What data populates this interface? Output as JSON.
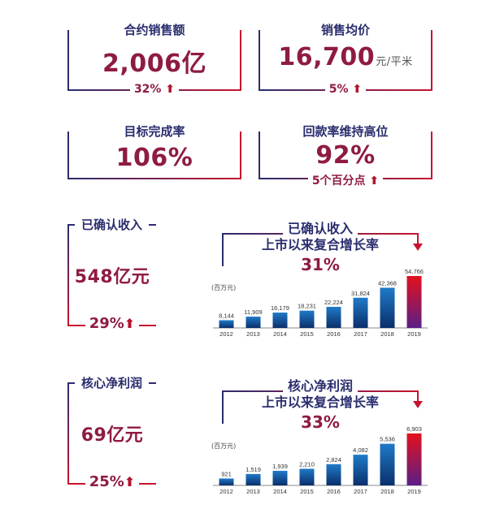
{
  "kpi": {
    "contract_sales": {
      "title": "合约销售额",
      "value": "2,006亿",
      "growth": "32%"
    },
    "avg_price": {
      "title": "销售均价",
      "value": "16,700",
      "unit": "元/平米",
      "growth": "5%"
    },
    "target_completion": {
      "title": "目标完成率",
      "value": "106%"
    },
    "collection_rate": {
      "title": "回款率维持高位",
      "value": "92%",
      "growth": "5个百分点"
    },
    "revenue": {
      "title": "已确认收入",
      "value": "548亿元",
      "growth": "29%"
    },
    "core_profit": {
      "title": "核心净利润",
      "value": "69亿元",
      "growth": "25%"
    }
  },
  "colors": {
    "title": "#2a2d6e",
    "value": "#8e1b43",
    "arrow": "#b3122e",
    "bar_dark": "#0a2f6b",
    "bar_light": "#1f7ac8",
    "bar_highlight": "#e3101e"
  },
  "chart_data": [
    {
      "type": "bar",
      "title_line1": "已确认收入",
      "title_line2": "上市以来复合增长率",
      "cagr": "31%",
      "unit_label": "(百万元)",
      "categories": [
        "2012",
        "2013",
        "2014",
        "2015",
        "2016",
        "2017",
        "2018",
        "2019"
      ],
      "values": [
        8144,
        11909,
        16179,
        18231,
        22224,
        31824,
        42368,
        54766
      ],
      "value_labels": [
        "8,144",
        "11,909",
        "16,179",
        "18,231",
        "22,224",
        "31,824",
        "42,368",
        "54,766"
      ],
      "ylim": [
        0,
        54766
      ],
      "highlight_index": 7
    },
    {
      "type": "bar",
      "title_line1": "核心净利润",
      "title_line2": "上市以来复合增长率",
      "cagr": "33%",
      "unit_label": "(百万元)",
      "categories": [
        "2012",
        "2013",
        "2014",
        "2015",
        "2016",
        "2017",
        "2018",
        "2019"
      ],
      "values": [
        921,
        1519,
        1939,
        2210,
        2824,
        4082,
        5536,
        6903
      ],
      "value_labels": [
        "921",
        "1,519",
        "1,939",
        "2,210",
        "2,824",
        "4,082",
        "5,536",
        "6,903"
      ],
      "ylim": [
        0,
        6903
      ],
      "highlight_index": 7
    }
  ]
}
